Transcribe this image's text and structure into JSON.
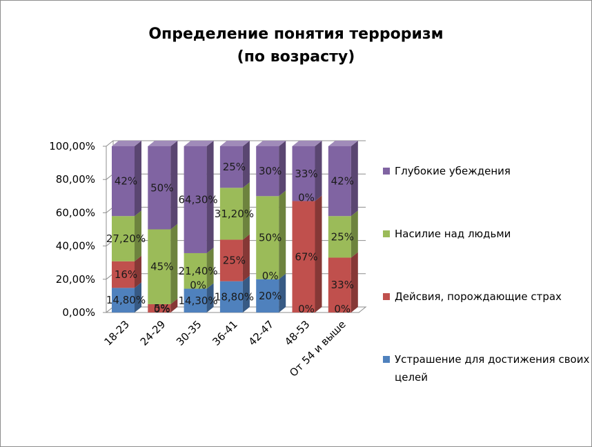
{
  "chart_data": {
    "type": "bar",
    "stacked": true,
    "title": [
      "Определение понятия терроризм",
      "(по возрасту)"
    ],
    "categories": [
      "18-23",
      "24-29",
      "30-35",
      "36-41",
      "42-47",
      "48-53",
      "От 54 и выше"
    ],
    "ylim": [
      0,
      1
    ],
    "yticks": [
      "0,00%",
      "20,00%",
      "40,00%",
      "60,00%",
      "80,00%",
      "100,00%"
    ],
    "grid": true,
    "legend_position": "right",
    "series": [
      {
        "name": "Устрашение для достижения своих целей",
        "color": "#4F81BD",
        "values": [
          0.148,
          0,
          0.143,
          0.188,
          0.2,
          0,
          0
        ],
        "labels": [
          "14,80%",
          "0%",
          "14,30%",
          "18,80%",
          "20%",
          "0%",
          "0%"
        ]
      },
      {
        "name": "Дейсвия, порождающие страх",
        "color": "#C0504D",
        "values": [
          0.16,
          0.05,
          0,
          0.25,
          0,
          0.67,
          0.33
        ],
        "labels": [
          "16%",
          "5%",
          "0%",
          "25%",
          "0%",
          "67%",
          "33%"
        ]
      },
      {
        "name": "Насилие над людьми",
        "color": "#9BBB59",
        "values": [
          0.272,
          0.45,
          0.214,
          0.312,
          0.5,
          0,
          0.25
        ],
        "labels": [
          "27,20%",
          "45%",
          "21,40%",
          "31,20%",
          "50%",
          "0%",
          "25%"
        ]
      },
      {
        "name": "Глубокие убеждения",
        "color": "#8064A2",
        "values": [
          0.42,
          0.5,
          0.643,
          0.25,
          0.3,
          0.33,
          0.42
        ],
        "labels": [
          "42%",
          "50%",
          "64,30%",
          "25%",
          "30%",
          "33%",
          "42%"
        ]
      }
    ]
  }
}
